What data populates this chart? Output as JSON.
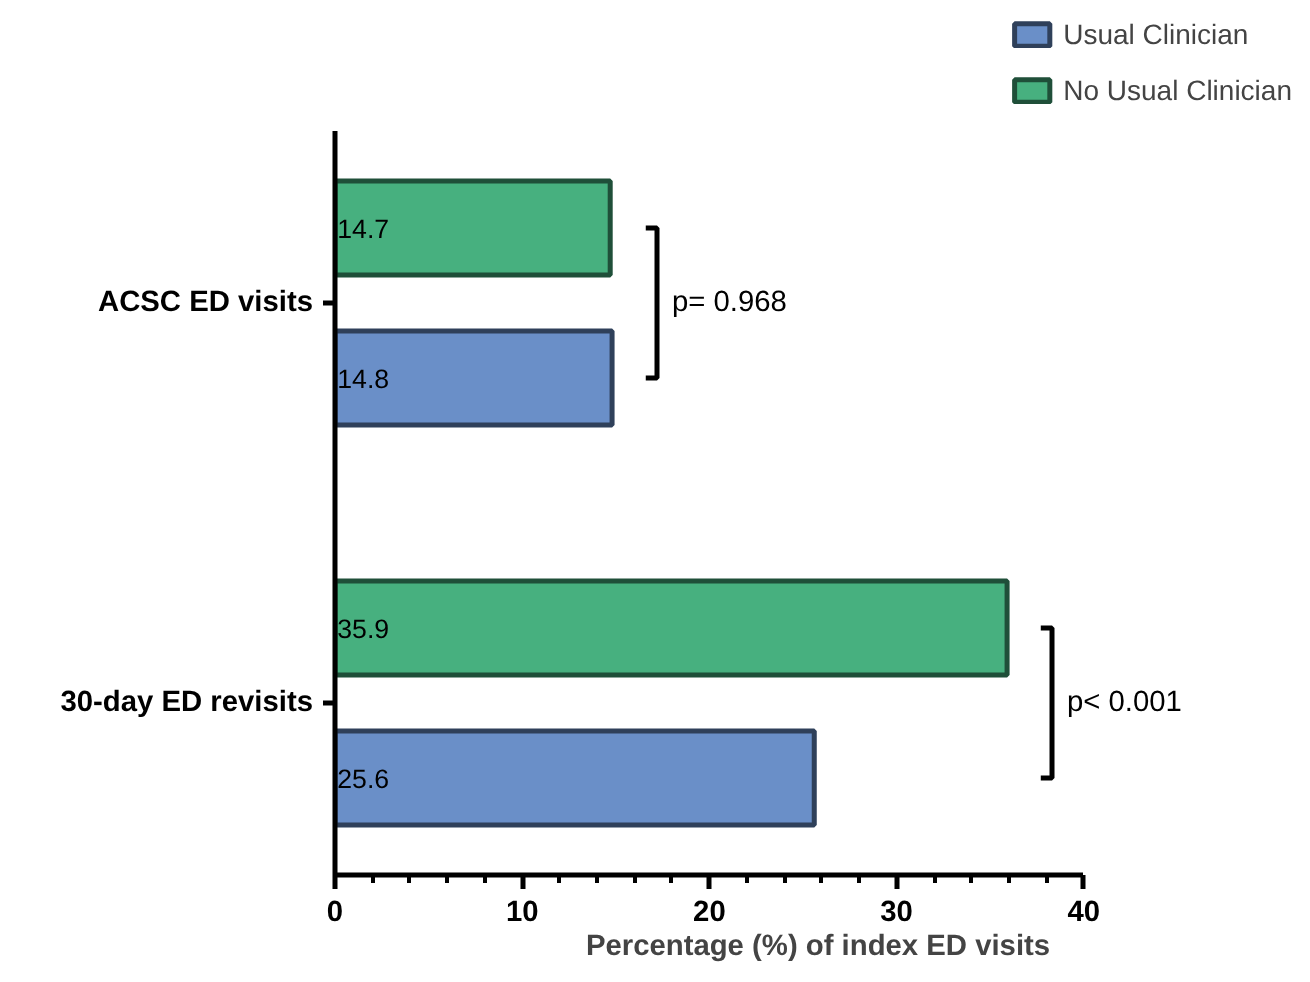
{
  "chart_data": {
    "type": "bar",
    "orientation": "horizontal",
    "xlabel": "Percentage (%) of index ED visits",
    "categories": [
      "ACSC ED visits",
      "30-day ED revisits"
    ],
    "series": [
      {
        "name": "Usual Clinician",
        "color": "#6a8fc8",
        "values": [
          14.8,
          25.6
        ]
      },
      {
        "name": "No Usual Clinician",
        "color": "#47b07f",
        "values": [
          14.7,
          35.9
        ]
      }
    ],
    "xlim": [
      0,
      40
    ],
    "xticks": [
      0,
      10,
      20,
      30,
      40
    ],
    "data_labels": true,
    "grid": false,
    "legend": "top right",
    "annotations": [
      "p= 0.968",
      "p< 0.001"
    ]
  }
}
